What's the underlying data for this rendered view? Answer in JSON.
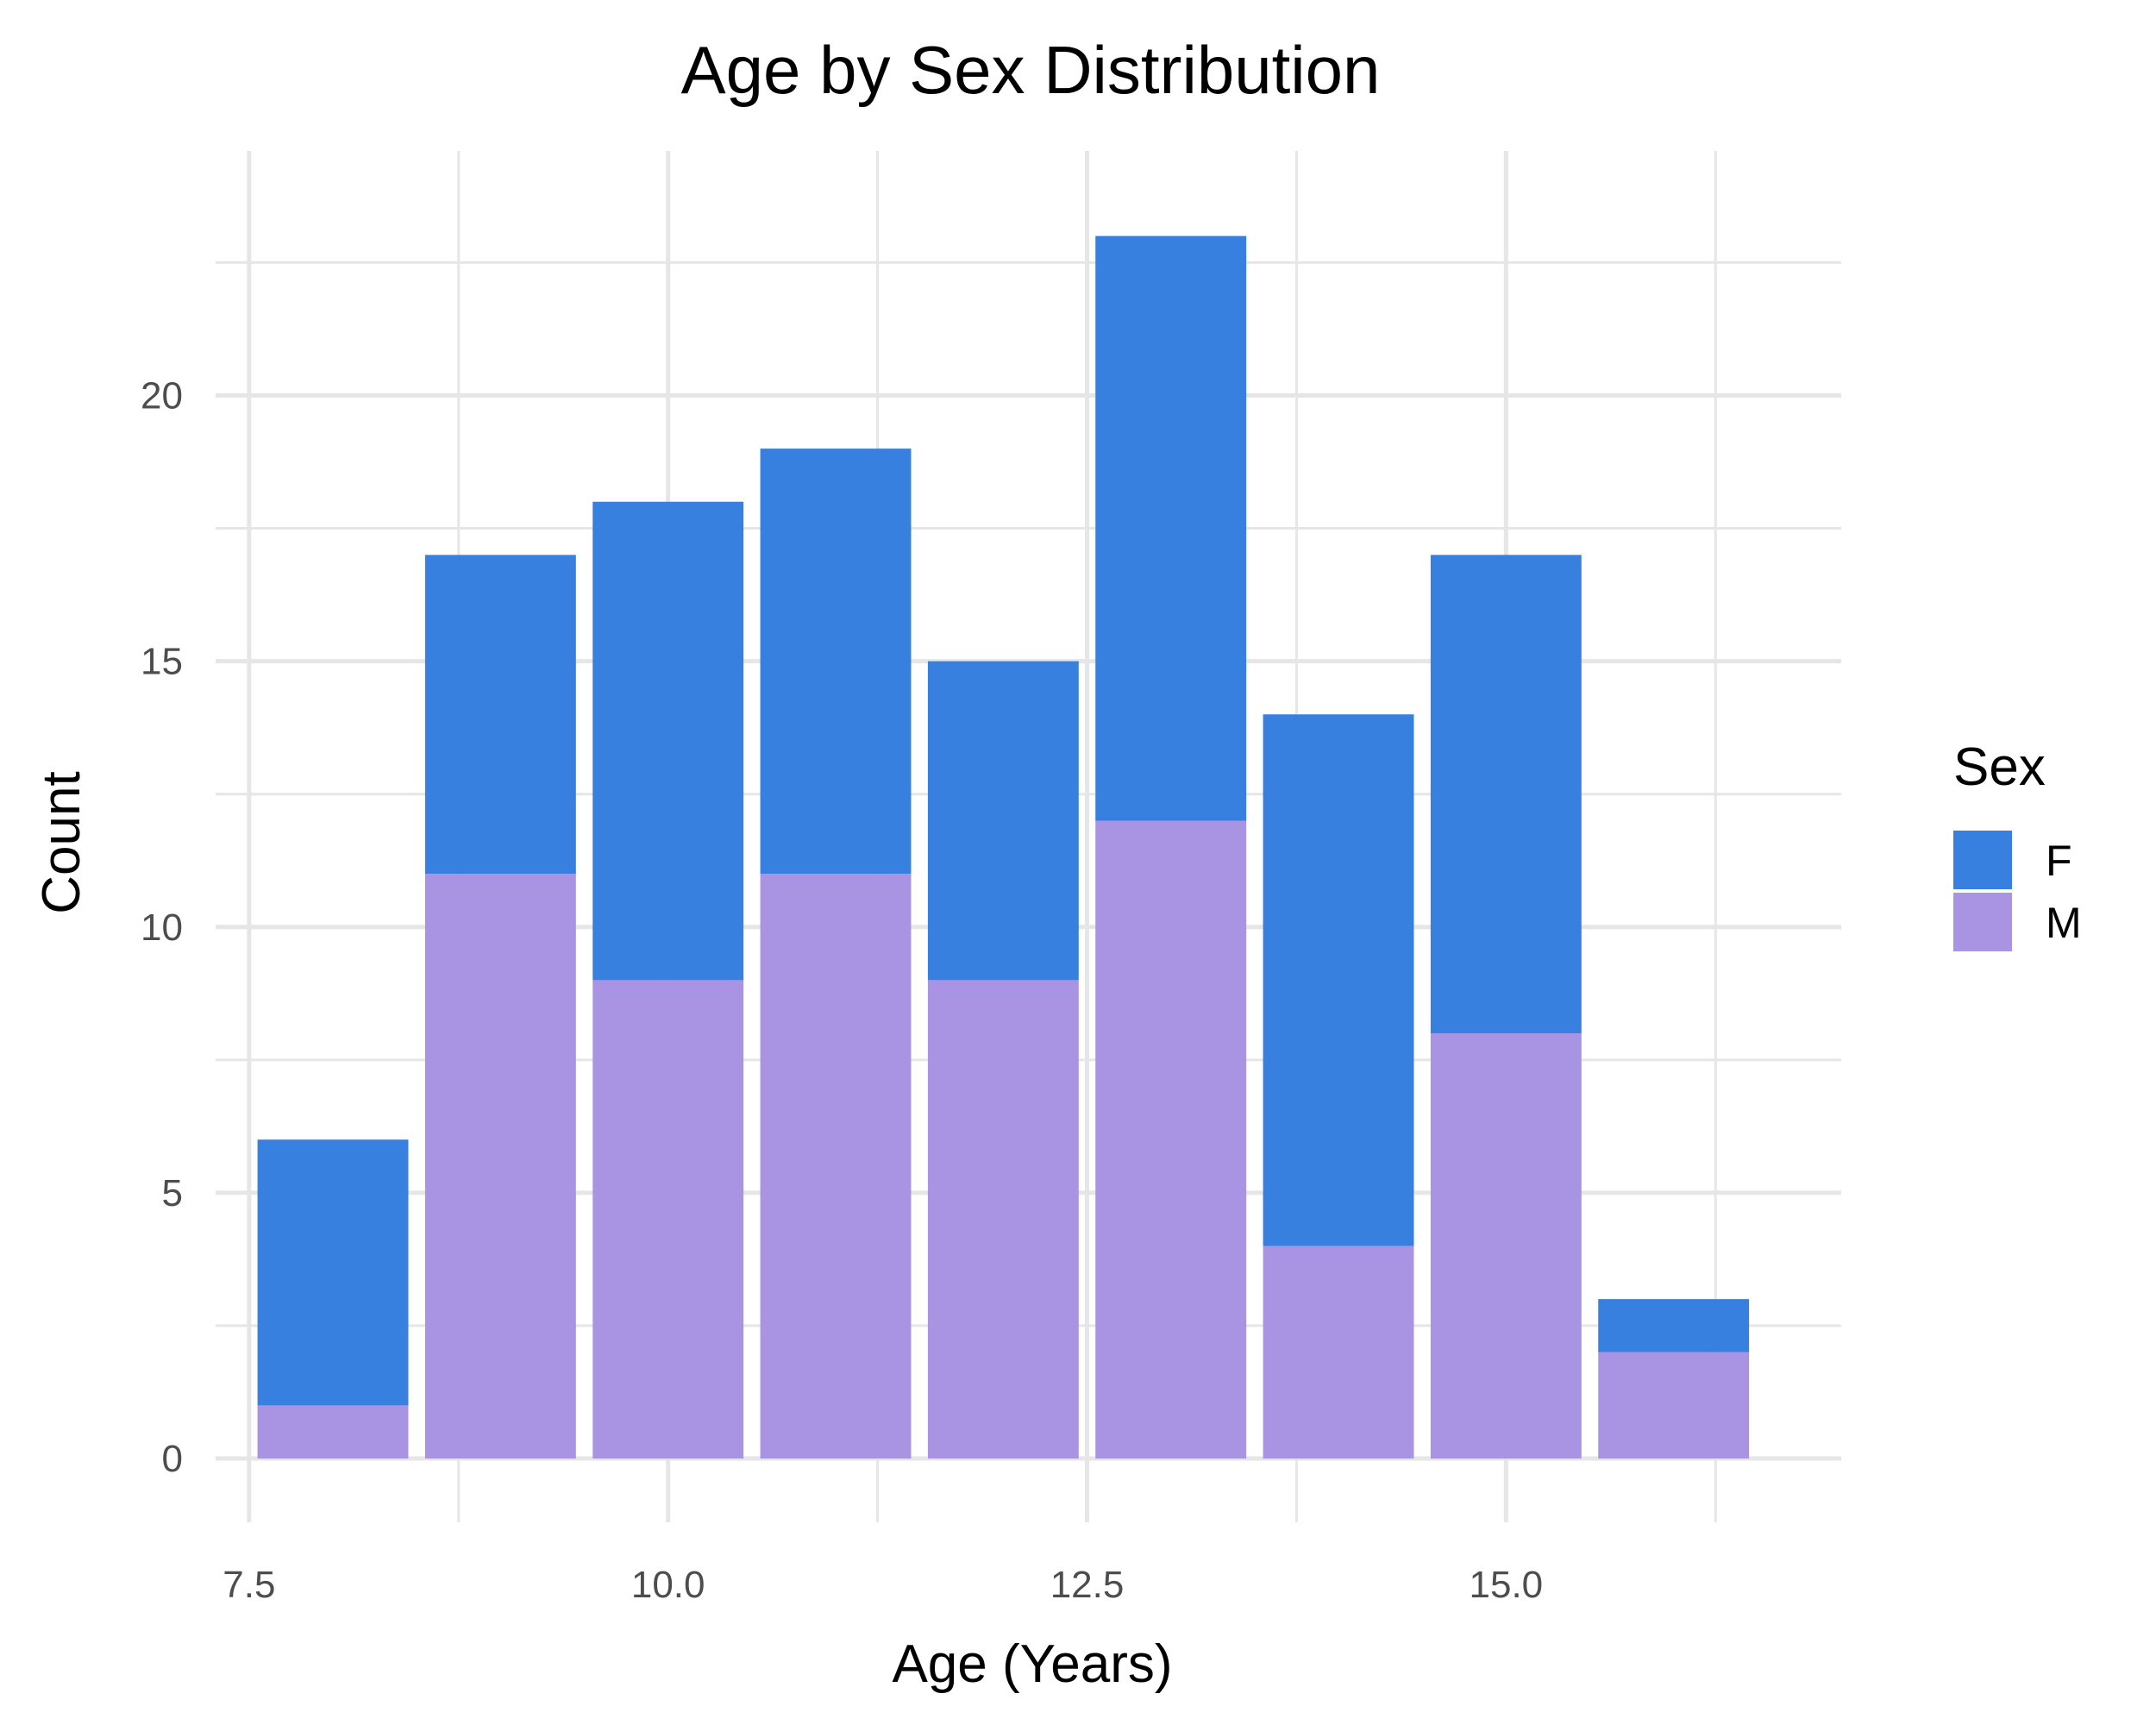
{
  "chart_data": {
    "type": "bar",
    "stacked": true,
    "title": "Age by Sex Distribution",
    "xlabel": "Age (Years)",
    "ylabel": "Count",
    "x": [
      8,
      9,
      10,
      11,
      12,
      13,
      14,
      15,
      16
    ],
    "series": [
      {
        "name": "M",
        "color": "#a994e4",
        "values": [
          1,
          11,
          9,
          11,
          9,
          12,
          4,
          8,
          2
        ]
      },
      {
        "name": "F",
        "color": "#3880df",
        "values": [
          5,
          6,
          9,
          8,
          6,
          11,
          10,
          9,
          1
        ]
      }
    ],
    "xlim": [
      7.3,
      17.0
    ],
    "ylim": [
      -1.2,
      24.6
    ],
    "x_ticks": [
      7.5,
      10.0,
      12.5,
      15.0
    ],
    "x_tick_labels": [
      "7.5",
      "10.0",
      "12.5",
      "15.0"
    ],
    "y_ticks": [
      0,
      5,
      10,
      15,
      20
    ],
    "y_tick_labels": [
      "0",
      "5",
      "10",
      "15",
      "20"
    ],
    "grid": true,
    "legend": {
      "title": "Sex",
      "position": "right",
      "entries": [
        {
          "label": "F",
          "color": "#3880df"
        },
        {
          "label": "M",
          "color": "#a994e4"
        }
      ]
    }
  }
}
